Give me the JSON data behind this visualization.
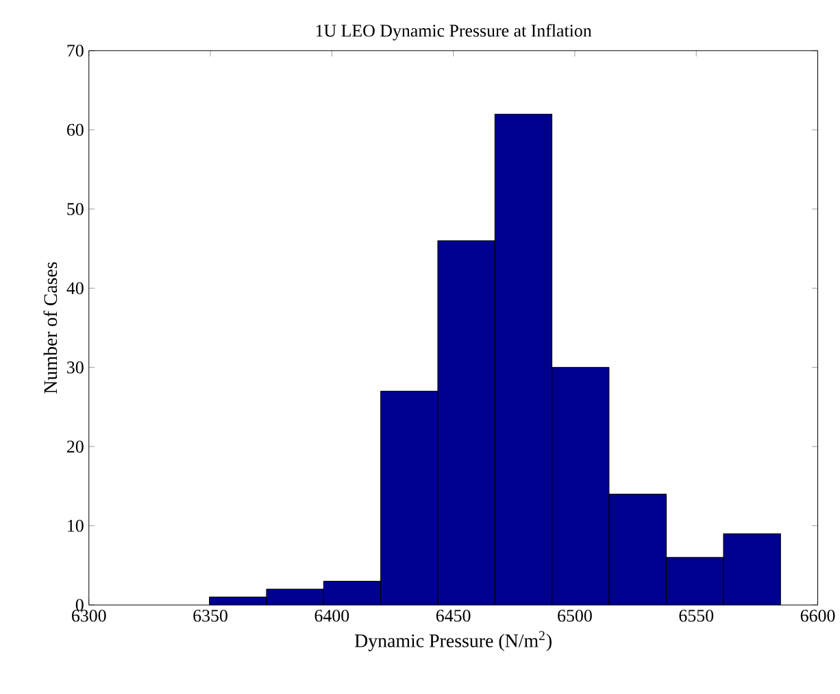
{
  "chart_data": {
    "type": "histogram",
    "title": "1U LEO Dynamic Pressure at Inflation",
    "xlabel": "Dynamic Pressure (N/m$^{2}$)",
    "ylabel": "Number of Cases",
    "bins": [
      6349.6,
      6373.1,
      6396.6,
      6420.1,
      6443.6,
      6467.1,
      6490.6,
      6514.1,
      6537.7,
      6561.2,
      6584.7
    ],
    "values": [
      1,
      2,
      3,
      27,
      46,
      62,
      30,
      14,
      6,
      9
    ],
    "color": "#00008f",
    "xlim": [
      6300,
      6600
    ],
    "xticks": [
      6300,
      6350,
      6400,
      6450,
      6500,
      6550,
      6600
    ],
    "ylim": [
      0,
      70
    ],
    "yticks": [
      0,
      10,
      20,
      30,
      40,
      50,
      60,
      70
    ]
  }
}
